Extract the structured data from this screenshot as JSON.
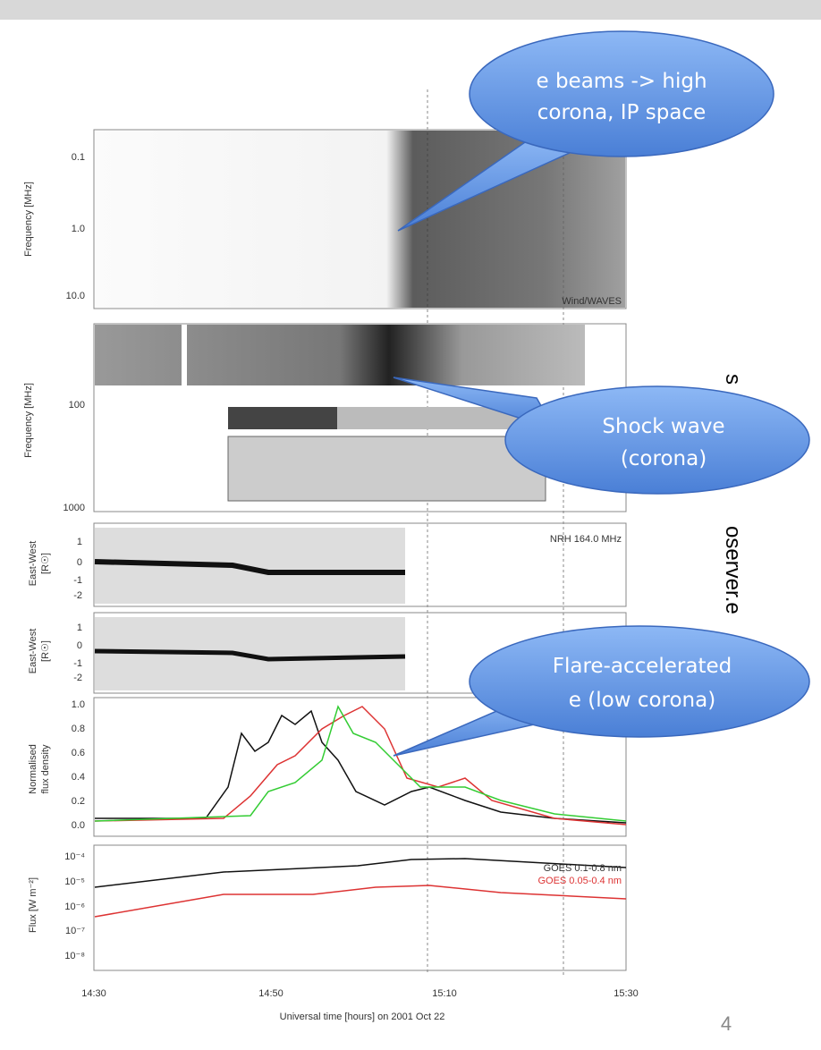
{
  "slide": {
    "page_number": "4",
    "side_text": [
      "s",
      "oserver.e"
    ],
    "callouts": [
      {
        "lines": [
          "e beams -> high",
          "corona, IP space"
        ]
      },
      {
        "lines": [
          "Shock wave",
          "(corona)"
        ]
      },
      {
        "lines": [
          "Flare-accelerated",
          "e (low corona)"
        ]
      }
    ],
    "figure": {
      "panels": [
        {
          "ylabel": [
            "Frequency [MHz]"
          ],
          "ticks": [
            "0.1",
            "1.0",
            "10.0"
          ],
          "note": "Wind/WAVES"
        },
        {
          "ylabel": [
            "Frequency [MHz]"
          ],
          "ticks": [
            "100",
            "1000"
          ]
        },
        {
          "ylabel": [
            "East-West",
            "[R☉]"
          ],
          "ticks": [
            "1",
            "0",
            "-1",
            "-2"
          ],
          "note": "NRH 164.0 MHz"
        },
        {
          "ylabel": [
            "East-West",
            "[R☉]"
          ],
          "ticks": [
            "1",
            "0",
            "-1",
            "-2"
          ]
        },
        {
          "ylabel": [
            "Normalised",
            "flux density"
          ],
          "ticks": [
            "1.0",
            "0.8",
            "0.6",
            "0.4",
            "0.2",
            "0.0"
          ]
        },
        {
          "ylabel": [
            "Flux [W m⁻²]"
          ],
          "ticks": [
            "10⁻⁴",
            "10⁻⁵",
            "10⁻⁶",
            "10⁻⁷",
            "10⁻⁸"
          ],
          "notes": [
            "GOES 0.1-0.8 nm",
            "GOES 0.05-0.4 nm"
          ]
        }
      ],
      "xticks": [
        "14:30",
        "14:50",
        "15:10",
        "15:30"
      ],
      "xlabel": "Universal time [hours] on 2001 Oct 22"
    }
  }
}
